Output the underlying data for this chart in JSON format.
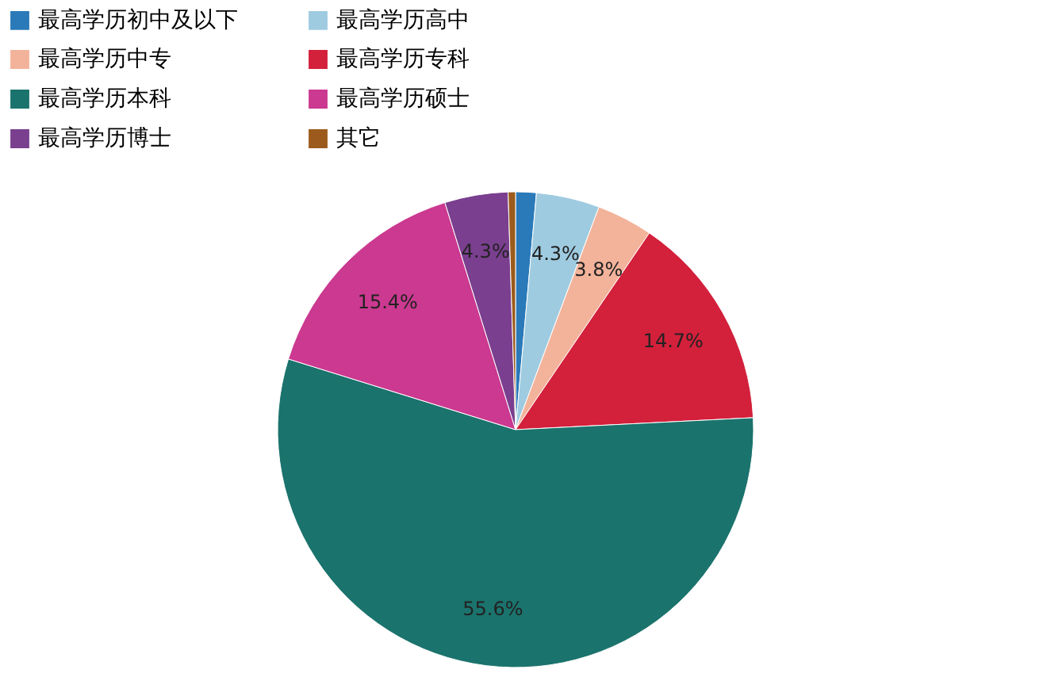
{
  "chart_data": {
    "type": "pie",
    "categories": [
      "最高学历初中及以下",
      "最高学历高中",
      "最高学历中专",
      "最高学历专科",
      "最高学历本科",
      "最高学历硕士",
      "最高学历博士",
      "其它"
    ],
    "values": [
      1.4,
      4.3,
      3.8,
      14.7,
      55.6,
      15.4,
      4.3,
      0.5
    ],
    "colors": [
      "#2a7ab9",
      "#9fcbe0",
      "#f3b39a",
      "#d3203b",
      "#1b736d",
      "#cb3990",
      "#7a3f8f",
      "#9c5b1c"
    ],
    "value_labels": [
      null,
      "4.3%",
      "3.8%",
      "14.7%",
      "55.6%",
      "15.4%",
      "4.3%",
      null
    ],
    "legend": "top left"
  }
}
